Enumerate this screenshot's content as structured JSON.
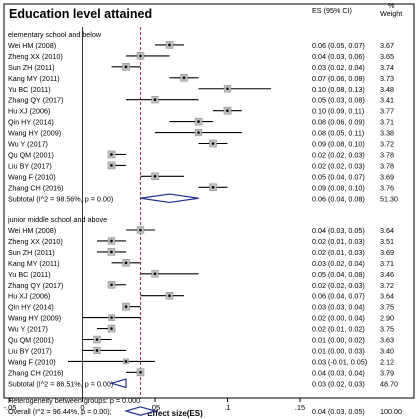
{
  "chart_data": {
    "type": "forest",
    "title": "Education level attained",
    "header_es": "ES (95% CI)",
    "header_weight": "%\nWeight",
    "xlabel": "Effect size(ES)",
    "x_ticks": [
      {
        "value": -0.05,
        "label": "-.05"
      },
      {
        "value": 0,
        "label": "0"
      },
      {
        "value": 0.05,
        "label": ".05"
      },
      {
        "value": 0.1,
        "label": ".1"
      },
      {
        "value": 0.15,
        "label": ".15"
      }
    ],
    "xlim": [
      -0.05,
      0.15
    ],
    "reference_line": 0,
    "overall_line": 0.04,
    "groups": [
      {
        "title": "elementary school and below",
        "studies": [
          {
            "label": "Wei HM (2008)",
            "es": 0.06,
            "lo": 0.05,
            "hi": 0.07,
            "es_text": "0.06 (0.05, 0.07)",
            "weight": "3.67"
          },
          {
            "label": "Zheng XX (2010)",
            "es": 0.04,
            "lo": 0.03,
            "hi": 0.06,
            "es_text": "0.04 (0.03, 0.06)",
            "weight": "3.65"
          },
          {
            "label": "Sun ZH (2011)",
            "es": 0.03,
            "lo": 0.02,
            "hi": 0.04,
            "es_text": "0.03 (0.02, 0.04)",
            "weight": "3.74"
          },
          {
            "label": "Kang MY (2011)",
            "es": 0.07,
            "lo": 0.06,
            "hi": 0.08,
            "es_text": "0.07 (0.06, 0.08)",
            "weight": "3.73"
          },
          {
            "label": "Yu BC (2011)",
            "es": 0.1,
            "lo": 0.08,
            "hi": 0.13,
            "es_text": "0.10 (0.08, 0.13)",
            "weight": "3.48"
          },
          {
            "label": "Zhang QY (2017)",
            "es": 0.05,
            "lo": 0.03,
            "hi": 0.08,
            "es_text": "0.05 (0.03, 0.08)",
            "weight": "3.41"
          },
          {
            "label": "Hu XJ (2006)",
            "es": 0.1,
            "lo": 0.09,
            "hi": 0.11,
            "es_text": "0.10 (0.09, 0.11)",
            "weight": "3.77"
          },
          {
            "label": "Qin HY (2014)",
            "es": 0.08,
            "lo": 0.06,
            "hi": 0.09,
            "es_text": "0.08 (0.06, 0.09)",
            "weight": "3.71"
          },
          {
            "label": "Wang HY (2009)",
            "es": 0.08,
            "lo": 0.05,
            "hi": 0.11,
            "es_text": "0.08 (0.05, 0.11)",
            "weight": "3.38"
          },
          {
            "label": "Wu Y (2017)",
            "es": 0.09,
            "lo": 0.08,
            "hi": 0.1,
            "es_text": "0.09 (0.08, 0.10)",
            "weight": "3.72"
          },
          {
            "label": "Qu QM (2001)",
            "es": 0.02,
            "lo": 0.02,
            "hi": 0.03,
            "es_text": "0.02 (0.02, 0.03)",
            "weight": "3.78"
          },
          {
            "label": "Liu BY (2017)",
            "es": 0.02,
            "lo": 0.02,
            "hi": 0.03,
            "es_text": "0.02 (0.02, 0.03)",
            "weight": "3.78"
          },
          {
            "label": "Wang F (2010)",
            "es": 0.05,
            "lo": 0.04,
            "hi": 0.07,
            "es_text": "0.05 (0.04, 0.07)",
            "weight": "3.69"
          },
          {
            "label": "Zhang CH (2016)",
            "es": 0.09,
            "lo": 0.08,
            "hi": 0.1,
            "es_text": "0.09 (0.08, 0.10)",
            "weight": "3.76"
          }
        ],
        "subtotal": {
          "label": "Subtotal  (I^2 = 98.56%, p = 0.00)",
          "es": 0.06,
          "lo": 0.04,
          "hi": 0.08,
          "es_text": "0.06 (0.04, 0.08)",
          "weight": "51.30"
        }
      },
      {
        "title": "junior middle school and above",
        "studies": [
          {
            "label": "Wei HM (2008)",
            "es": 0.04,
            "lo": 0.03,
            "hi": 0.05,
            "es_text": "0.04 (0.03, 0.05)",
            "weight": "3.64"
          },
          {
            "label": "Zheng XX (2010)",
            "es": 0.02,
            "lo": 0.01,
            "hi": 0.03,
            "es_text": "0.02 (0.01, 0.03)",
            "weight": "3.51"
          },
          {
            "label": "Sun ZH (2011)",
            "es": 0.02,
            "lo": 0.01,
            "hi": 0.03,
            "es_text": "0.02 (0.01, 0.03)",
            "weight": "3.69"
          },
          {
            "label": "Kang MY (2011)",
            "es": 0.03,
            "lo": 0.02,
            "hi": 0.04,
            "es_text": "0.03 (0.02, 0.04)",
            "weight": "3.71"
          },
          {
            "label": "Yu BC (2011)",
            "es": 0.05,
            "lo": 0.04,
            "hi": 0.08,
            "es_text": "0.05 (0.04, 0.08)",
            "weight": "3.46"
          },
          {
            "label": "Zhang QY (2017)",
            "es": 0.02,
            "lo": 0.02,
            "hi": 0.03,
            "es_text": "0.02 (0.02, 0.03)",
            "weight": "3.72"
          },
          {
            "label": "Hu XJ (2006)",
            "es": 0.06,
            "lo": 0.04,
            "hi": 0.07,
            "es_text": "0.06 (0.04, 0.07)",
            "weight": "3.64"
          },
          {
            "label": "Qin HY (2014)",
            "es": 0.03,
            "lo": 0.03,
            "hi": 0.04,
            "es_text": "0.03 (0.03, 0.04)",
            "weight": "3.75"
          },
          {
            "label": "Wang HY (2009)",
            "es": 0.02,
            "lo": 0.0,
            "hi": 0.04,
            "es_text": "0.02 (0.00, 0.04)",
            "weight": "2.90"
          },
          {
            "label": "Wu Y (2017)",
            "es": 0.02,
            "lo": 0.01,
            "hi": 0.02,
            "es_text": "0.02 (0.01, 0.02)",
            "weight": "3.75"
          },
          {
            "label": "Qu QM (2001)",
            "es": 0.01,
            "lo": 0.0,
            "hi": 0.02,
            "es_text": "0.01 (0.00, 0.02)",
            "weight": "3.63"
          },
          {
            "label": "Liu BY (2017)",
            "es": 0.01,
            "lo": 0.0,
            "hi": 0.03,
            "es_text": "0.01 (0.00, 0.03)",
            "weight": "3.40"
          },
          {
            "label": "Wang F (2010)",
            "es": 0.03,
            "lo": -0.01,
            "hi": 0.05,
            "es_text": "0.03 (-0.01, 0.05)",
            "weight": "2.12"
          },
          {
            "label": "Zhang CH (2016)",
            "es": 0.04,
            "lo": 0.03,
            "hi": 0.04,
            "es_text": "0.04 (0.03, 0.04)",
            "weight": "3.79"
          }
        ],
        "subtotal": {
          "label": "Subtotal  (I^2 = 86.51%, p = 0.00)",
          "es": 0.03,
          "lo": 0.02,
          "hi": 0.03,
          "es_text": "0.03 (0.02, 0.03)",
          "weight": "48.70"
        }
      }
    ],
    "heterogeneity": "Heterogeneity between groups: p = 0.000",
    "overall": {
      "label": "Overall  (I^2 = 96.44%, p = 0.00);",
      "es": 0.04,
      "lo": 0.03,
      "hi": 0.05,
      "es_text": "0.04 (0.03, 0.05)",
      "weight": "100.00"
    }
  }
}
